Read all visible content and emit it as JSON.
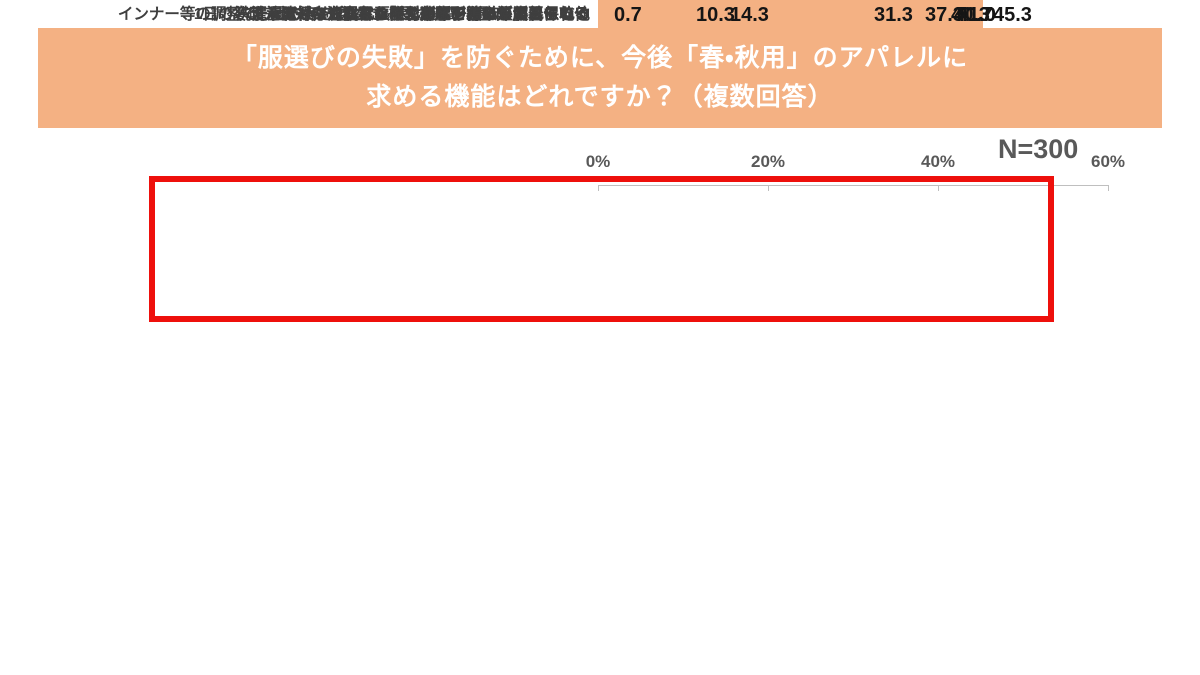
{
  "header": {
    "title_line1": "「服選びの失敗」を防ぐために、今後「春・秋用」のアパレルに",
    "title_line2": "求める機能はどれですか？（複数回答）"
  },
  "sample_label": "N=300",
  "chart_data": {
    "type": "bar",
    "orientation": "horizontal",
    "title": "「服選びの失敗」を防ぐために、今後「春・秋用」のアパレルに求める機能はどれですか？（複数回答）",
    "categories": [
      "洗濯を繰り返しても、型崩れや縮みが起きにくい",
      "洗濯してもシワになりにくく、アイロンが要らない",
      "流行に左右されず、来年も再来年も着られる",
      "1日の寒暖差に対応し、暑すぎず寒すぎない温度に保てる",
      "インナー等の調整で、夏や冬を含めた「長い期間（通年）」着られる",
      "洗濯した後、部屋干しでもすぐに乾く",
      "汗をかいても肌に張り付かず、サラッとしている",
      "急な雨でも水を弾いて濡れにくい",
      "泥ハネや食べこぼしなどの汚れがつきにくい",
      "その他"
    ],
    "values": [
      45.3,
      41.0,
      41.0,
      40.7,
      40.3,
      37.3,
      31.3,
      14.3,
      10.3,
      0.7
    ],
    "value_labels": [
      "45.3",
      "41.0",
      "41.0",
      "40.7",
      "40.3",
      "37.3",
      "31.3",
      "14.3",
      "10.3",
      "0.7"
    ],
    "x_ticks": [
      "0%",
      "20%",
      "40%",
      "60%"
    ],
    "xlim": [
      0,
      60
    ],
    "ylabel": "",
    "xlabel": "",
    "legend": "none",
    "grid": "top axis with ticks only",
    "bar_color": "#F4B183",
    "header_color": "#F4B183",
    "highlight": {
      "rows": [
        0,
        1,
        2
      ],
      "box_color": "#EE100C"
    }
  }
}
